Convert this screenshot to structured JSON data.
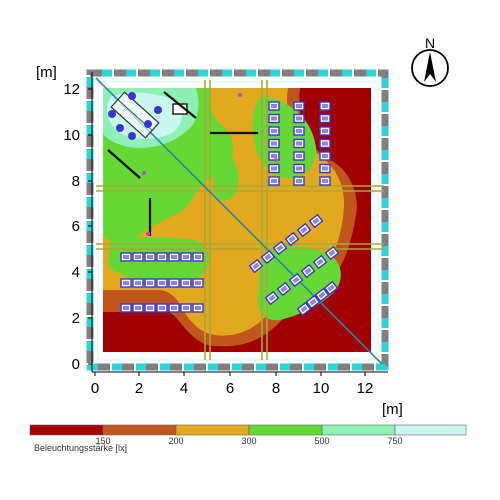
{
  "axes": {
    "y_unit": "[m]",
    "x_unit": "[m]",
    "y_ticks": [
      "0",
      "2",
      "4",
      "6",
      "8",
      "10",
      "12"
    ],
    "x_ticks": [
      "0",
      "2",
      "4",
      "6",
      "8",
      "10",
      "12"
    ]
  },
  "compass": {
    "letter": "N"
  },
  "legend": {
    "title": "Beleuchtungsstärke [lx]",
    "labels": [
      "150",
      "200",
      "300",
      "500",
      "750"
    ],
    "colors": [
      "#a00000",
      "#c0561c",
      "#e2a91e",
      "#66d835",
      "#8ef0b4",
      "#c8f8ee"
    ]
  },
  "colors": {
    "level_150": "#a00000",
    "level_200": "#c0561c",
    "level_300": "#e2a91e",
    "level_500": "#66d835",
    "level_750": "#8ef0b4",
    "level_max": "#c8f8ee",
    "wall": "#2ed3d6",
    "luminaire": "#3a34d6",
    "grid_line": "#a8a838"
  }
}
